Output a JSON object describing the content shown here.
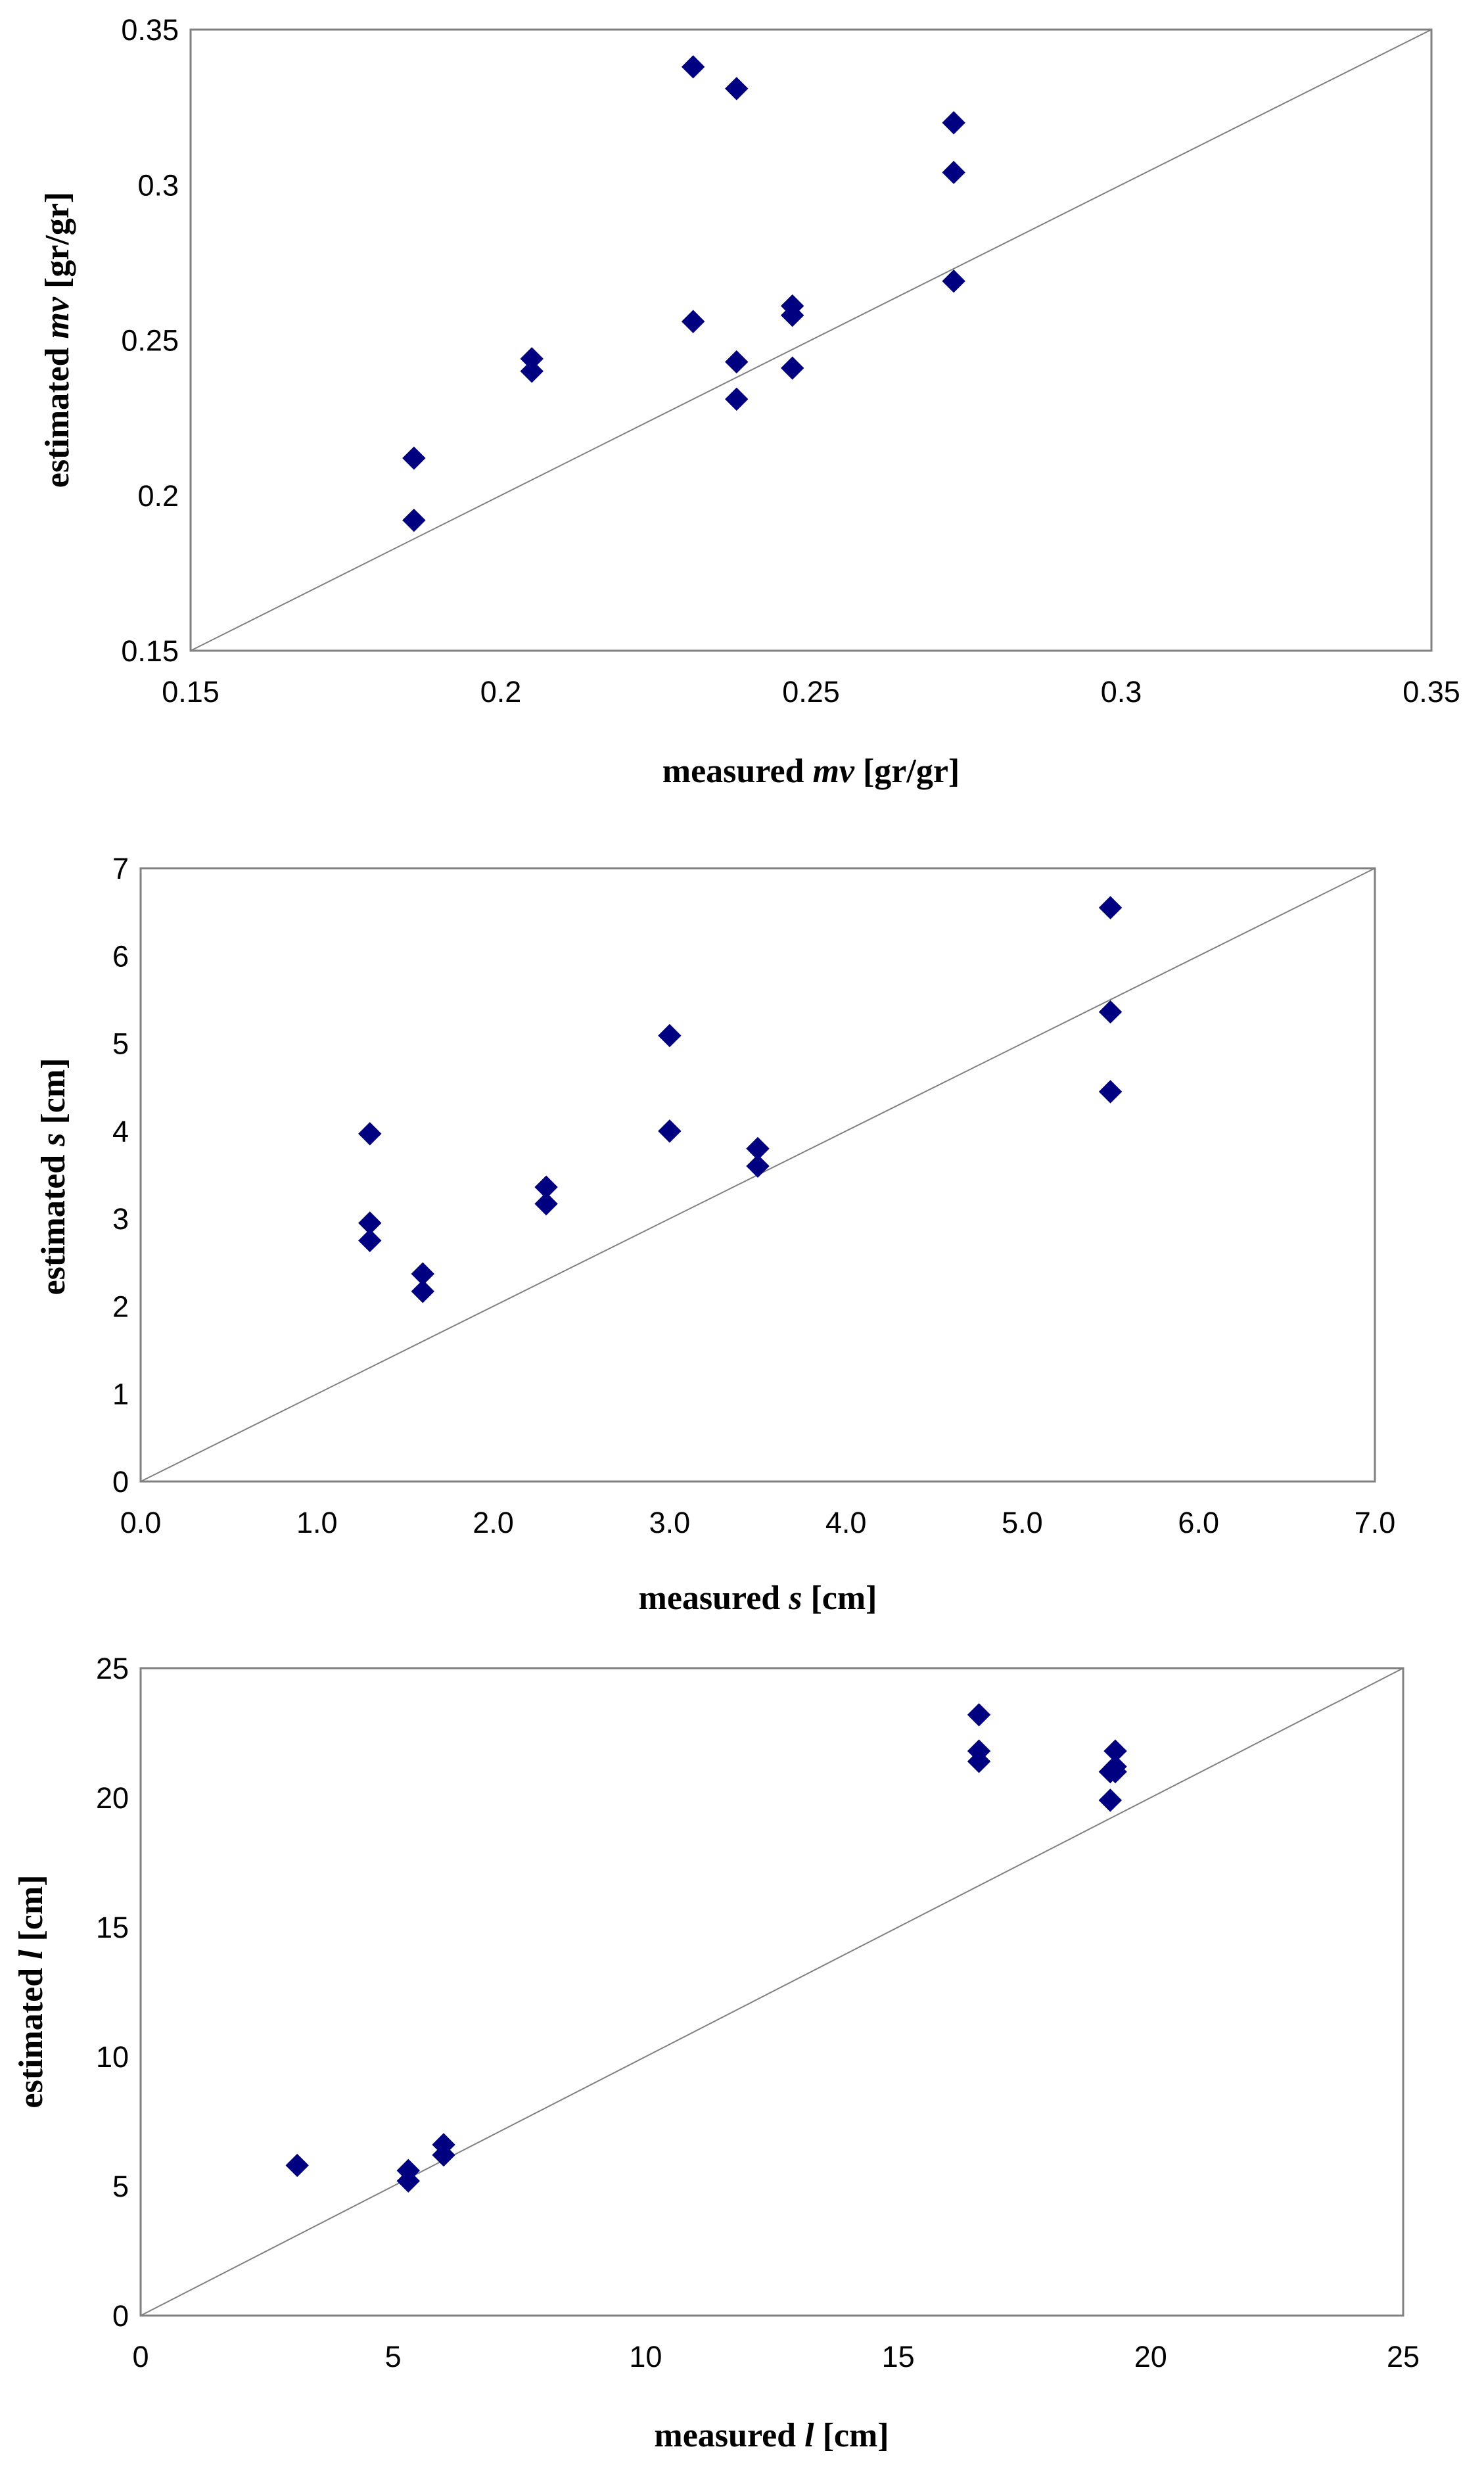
{
  "chart_data": [
    {
      "type": "scatter",
      "title": "",
      "xlabel": {
        "prefix": "measured ",
        "var": "mv",
        "suffix": " [gr/gr]"
      },
      "ylabel": {
        "prefix": "estimated ",
        "var": "mv",
        "suffix": " [gr/gr]"
      },
      "xlim": [
        0.15,
        0.35
      ],
      "ylim": [
        0.15,
        0.35
      ],
      "xticks": [
        "0.15",
        "0.2",
        "0.25",
        "0.3",
        "0.35"
      ],
      "yticks": [
        "0.15",
        "0.2",
        "0.25",
        "0.3",
        "0.35"
      ],
      "reference_line": "1:1",
      "grid": false,
      "marker": "diamond",
      "marker_color": "#000080",
      "x": [
        0.186,
        0.186,
        0.205,
        0.205,
        0.231,
        0.231,
        0.238,
        0.238,
        0.238,
        0.247,
        0.247,
        0.247,
        0.273,
        0.273,
        0.273
      ],
      "y": [
        0.212,
        0.192,
        0.244,
        0.24,
        0.338,
        0.256,
        0.331,
        0.243,
        0.231,
        0.261,
        0.258,
        0.241,
        0.32,
        0.304,
        0.269
      ]
    },
    {
      "type": "scatter",
      "title": "",
      "xlabel": {
        "prefix": "measured ",
        "var": "s",
        "suffix": " [cm]"
      },
      "ylabel": {
        "prefix": "estimated ",
        "var": "s",
        "suffix": " [cm]"
      },
      "xlim": [
        0,
        7
      ],
      "ylim": [
        0,
        7
      ],
      "xticks": [
        "0.0",
        "1.0",
        "2.0",
        "3.0",
        "4.0",
        "5.0",
        "6.0",
        "7.0"
      ],
      "yticks": [
        "0",
        "1",
        "2",
        "3",
        "4",
        "5",
        "6",
        "7"
      ],
      "reference_line": "1:1",
      "grid": false,
      "marker": "diamond",
      "marker_color": "#000080",
      "x": [
        1.3,
        1.3,
        1.3,
        1.6,
        1.6,
        2.3,
        2.3,
        3.0,
        3.0,
        3.5,
        3.5,
        5.5,
        5.5,
        5.5
      ],
      "y": [
        3.97,
        2.95,
        2.75,
        2.37,
        2.17,
        3.36,
        3.17,
        5.09,
        4.0,
        3.8,
        3.6,
        6.55,
        5.36,
        4.45
      ]
    },
    {
      "type": "scatter",
      "title": "",
      "xlabel": {
        "prefix": "measured ",
        "var": "l",
        "suffix": " [cm]"
      },
      "ylabel": {
        "prefix": "estimated ",
        "var": "l",
        "suffix": " [cm]"
      },
      "xlim": [
        0,
        25
      ],
      "ylim": [
        0,
        25
      ],
      "xticks": [
        "0",
        "5",
        "10",
        "15",
        "20",
        "25"
      ],
      "yticks": [
        "0",
        "5",
        "10",
        "15",
        "20",
        "25"
      ],
      "reference_line": "1:1",
      "grid": false,
      "marker": "diamond",
      "marker_color": "#000080",
      "x": [
        3.1,
        5.3,
        5.3,
        6.0,
        6.0,
        16.6,
        16.6,
        16.6,
        19.2,
        19.3,
        19.3,
        19.3,
        19.2
      ],
      "y": [
        5.8,
        5.6,
        5.2,
        6.6,
        6.2,
        23.2,
        21.8,
        21.4,
        21.0,
        21.8,
        21.2,
        21.0,
        19.9
      ]
    }
  ]
}
